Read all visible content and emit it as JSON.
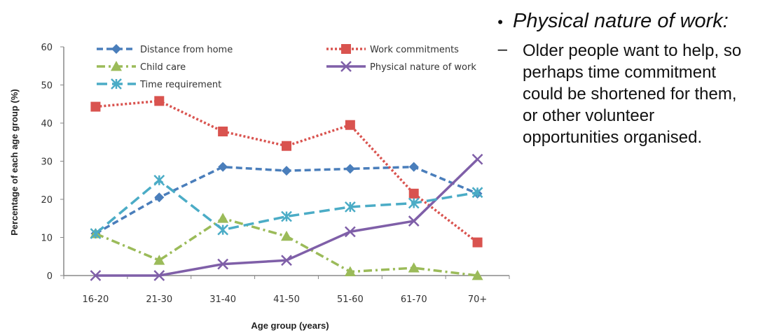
{
  "chart_data": {
    "type": "line",
    "title": "",
    "xlabel": "Age group (years)",
    "ylabel": "Percentage of each age group (%)",
    "categories": [
      "16-20",
      "21-30",
      "31-40",
      "41-50",
      "51-60",
      "61-70",
      "70+"
    ],
    "ylim": [
      0,
      60
    ],
    "yticks": [
      "0",
      "10",
      "20",
      "30",
      "40",
      "50",
      "60"
    ],
    "grid": false,
    "legend_position": "top",
    "series": [
      {
        "name": "Distance from home",
        "values": [
          11,
          20.5,
          28.5,
          27.5,
          28,
          28.5,
          21.5
        ],
        "color": "#4a7ebb",
        "dash": "dashed",
        "marker": "diamond"
      },
      {
        "name": "Work commitments",
        "values": [
          44.3,
          45.8,
          37.8,
          34,
          39.5,
          21.5,
          8.7
        ],
        "color": "#d9534f",
        "dash": "dotted",
        "marker": "square"
      },
      {
        "name": "Child care",
        "values": [
          11,
          4,
          15,
          10.3,
          1,
          2,
          0
        ],
        "color": "#9bbb59",
        "dash": "dash-dot",
        "marker": "triangle"
      },
      {
        "name": "Physical nature of work",
        "values": [
          0,
          0,
          3,
          4,
          11.5,
          14.3,
          30.5
        ],
        "color": "#7f5fa8",
        "dash": "solid",
        "marker": "x"
      },
      {
        "name": "Time requirement",
        "values": [
          11,
          25,
          12,
          15.5,
          18,
          19,
          21.8
        ],
        "color": "#4bacc6",
        "dash": "long-dash",
        "marker": "asterisk"
      }
    ]
  },
  "slide": {
    "bullet": "•",
    "heading": "Physical nature of work:",
    "dash": "–",
    "sub_text": "Older people want to help, so perhaps time commitment could be shortened for them, or other volunteer opportunities organised."
  }
}
